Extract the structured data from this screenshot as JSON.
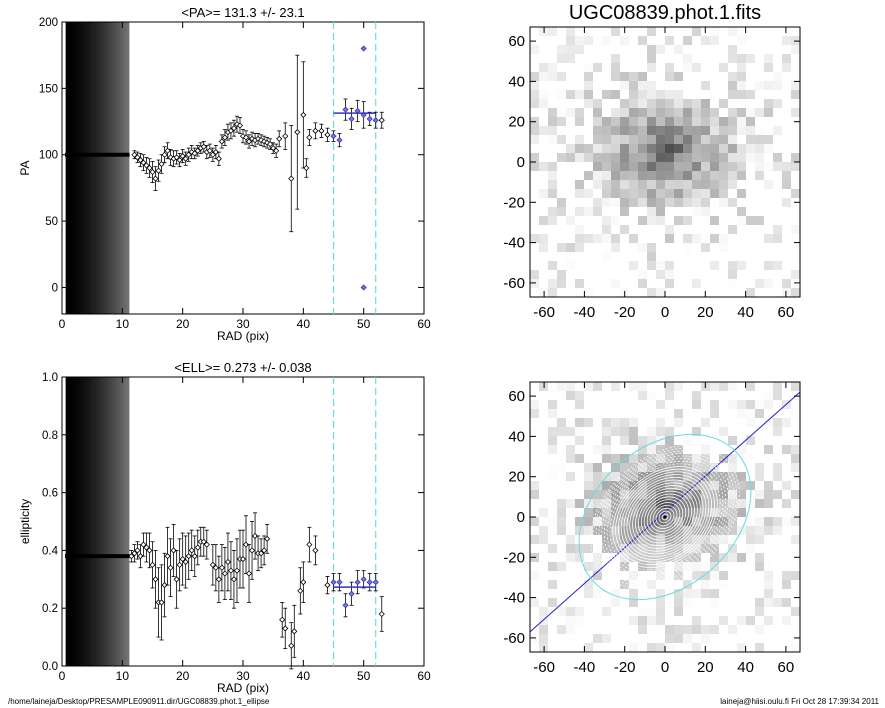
{
  "chart_data": [
    {
      "type": "scatter",
      "title": "<PA>= 131.3 +/-  23.1",
      "xlabel": "RAD (pix)",
      "ylabel": "PA",
      "xlim": [
        0,
        60
      ],
      "ylim": [
        -20,
        200
      ],
      "xticks": [
        0,
        10,
        20,
        30,
        40,
        50,
        60
      ],
      "yticks": [
        0,
        50,
        100,
        150,
        200
      ],
      "vlines": [
        45,
        52
      ],
      "mean_line": {
        "x": [
          45,
          52
        ],
        "y": 131.3
      },
      "points": [
        [
          12,
          100,
          3
        ],
        [
          12.5,
          98,
          4
        ],
        [
          13,
          96,
          5
        ],
        [
          13.5,
          94,
          6
        ],
        [
          14,
          92,
          6
        ],
        [
          14.5,
          90,
          7
        ],
        [
          15,
          87,
          8
        ],
        [
          15.5,
          82,
          9
        ],
        [
          16,
          88,
          8
        ],
        [
          16.5,
          93,
          7
        ],
        [
          17,
          100,
          6
        ],
        [
          17.5,
          103,
          6
        ],
        [
          18,
          98,
          6
        ],
        [
          18.5,
          97,
          6
        ],
        [
          19,
          98,
          5
        ],
        [
          19.5,
          96,
          5
        ],
        [
          20,
          99,
          5
        ],
        [
          20.5,
          97,
          5
        ],
        [
          21,
          100,
          5
        ],
        [
          21.5,
          102,
          5
        ],
        [
          22,
          101,
          4
        ],
        [
          22.5,
          103,
          4
        ],
        [
          23,
          105,
          4
        ],
        [
          23.5,
          106,
          4
        ],
        [
          24,
          102,
          5
        ],
        [
          24.5,
          103,
          5
        ],
        [
          25,
          100,
          5
        ],
        [
          25.5,
          102,
          5
        ],
        [
          26,
          97,
          5
        ],
        [
          26.5,
          110,
          5
        ],
        [
          27,
          113,
          6
        ],
        [
          27.5,
          117,
          6
        ],
        [
          28,
          118,
          6
        ],
        [
          28.5,
          120,
          6
        ],
        [
          29,
          123,
          6
        ],
        [
          29.5,
          122,
          6
        ],
        [
          30,
          114,
          5
        ],
        [
          30.5,
          113,
          5
        ],
        [
          31,
          110,
          5
        ],
        [
          31.5,
          112,
          5
        ],
        [
          32,
          111,
          5
        ],
        [
          32.5,
          112,
          4
        ],
        [
          33,
          111,
          4
        ],
        [
          33.5,
          110,
          4
        ],
        [
          34,
          109,
          4
        ],
        [
          34.5,
          108,
          4
        ],
        [
          35,
          105,
          4
        ],
        [
          35.5,
          103,
          5
        ],
        [
          36,
          112,
          6
        ],
        [
          37,
          114,
          10
        ],
        [
          38,
          82,
          40
        ],
        [
          39,
          117,
          58
        ],
        [
          40,
          130,
          40
        ],
        [
          40.5,
          90,
          7
        ],
        [
          41,
          113,
          6
        ],
        [
          42,
          118,
          6
        ],
        [
          43,
          118,
          5
        ],
        [
          44,
          115,
          5
        ],
        [
          45,
          114,
          4
        ],
        [
          46,
          111,
          5
        ],
        [
          47,
          134,
          8
        ],
        [
          48,
          127,
          8
        ],
        [
          49,
          133,
          8
        ],
        [
          50,
          130,
          10
        ],
        [
          51,
          127,
          5
        ],
        [
          52,
          126,
          6
        ],
        [
          53,
          126,
          6
        ],
        [
          50,
          180,
          0
        ],
        [
          50,
          0,
          0
        ]
      ]
    },
    {
      "type": "scatter",
      "title": "<ELL>= 0.273 +/-  0.038",
      "xlabel": "RAD (pix)",
      "ylabel": "ellipticity",
      "xlim": [
        0,
        60
      ],
      "ylim": [
        0,
        1
      ],
      "xticks": [
        0,
        10,
        20,
        30,
        40,
        50,
        60
      ],
      "yticks": [
        0,
        0.2,
        0.4,
        0.6,
        0.8,
        1
      ],
      "ytick_labels": [
        "0.0",
        "0.2",
        "0.4",
        "0.6",
        "0.8",
        "1.0"
      ],
      "vlines": [
        45,
        52
      ],
      "mean_line": {
        "x": [
          45,
          52
        ],
        "y": 0.273
      },
      "points": [
        [
          11.5,
          0.38,
          0.02
        ],
        [
          12,
          0.39,
          0.03
        ],
        [
          12.5,
          0.4,
          0.03
        ],
        [
          13,
          0.38,
          0.04
        ],
        [
          13.5,
          0.42,
          0.04
        ],
        [
          14,
          0.41,
          0.05
        ],
        [
          14.5,
          0.4,
          0.06
        ],
        [
          15,
          0.35,
          0.08
        ],
        [
          15.5,
          0.3,
          0.1
        ],
        [
          16,
          0.22,
          0.12
        ],
        [
          16.5,
          0.22,
          0.13
        ],
        [
          17,
          0.28,
          0.11
        ],
        [
          17.5,
          0.38,
          0.1
        ],
        [
          18,
          0.34,
          0.1
        ],
        [
          18.5,
          0.4,
          0.09
        ],
        [
          19,
          0.3,
          0.1
        ],
        [
          19.5,
          0.35,
          0.09
        ],
        [
          20,
          0.37,
          0.09
        ],
        [
          20.5,
          0.36,
          0.09
        ],
        [
          21,
          0.38,
          0.08
        ],
        [
          21.5,
          0.4,
          0.07
        ],
        [
          22,
          0.38,
          0.07
        ],
        [
          22.5,
          0.41,
          0.06
        ],
        [
          23,
          0.43,
          0.05
        ],
        [
          23.5,
          0.43,
          0.05
        ],
        [
          24,
          0.42,
          0.05
        ],
        [
          25,
          0.35,
          0.07
        ],
        [
          25.5,
          0.34,
          0.08
        ],
        [
          26,
          0.3,
          0.08
        ],
        [
          26.5,
          0.34,
          0.08
        ],
        [
          27,
          0.32,
          0.09
        ],
        [
          27.5,
          0.36,
          0.1
        ],
        [
          28,
          0.33,
          0.1
        ],
        [
          28.5,
          0.3,
          0.1
        ],
        [
          29,
          0.33,
          0.11
        ],
        [
          29.5,
          0.37,
          0.1
        ],
        [
          30,
          0.37,
          0.1
        ],
        [
          30.5,
          0.42,
          0.1
        ],
        [
          31,
          0.32,
          0.1
        ],
        [
          31.5,
          0.4,
          0.1
        ],
        [
          32,
          0.45,
          0.08
        ],
        [
          32.5,
          0.39,
          0.06
        ],
        [
          33,
          0.39,
          0.05
        ],
        [
          33.5,
          0.4,
          0.05
        ],
        [
          34,
          0.44,
          0.05
        ],
        [
          36.5,
          0.16,
          0.06
        ],
        [
          37,
          0.13,
          0.07
        ],
        [
          38,
          0.07,
          0.08
        ],
        [
          38.5,
          0.12,
          0.09
        ],
        [
          39.5,
          0.26,
          0.08
        ],
        [
          40,
          0.29,
          0.07
        ],
        [
          41,
          0.42,
          0.06
        ],
        [
          42,
          0.4,
          0.05
        ],
        [
          44,
          0.28,
          0.03
        ],
        [
          45,
          0.29,
          0.03
        ],
        [
          46,
          0.29,
          0.03
        ],
        [
          47,
          0.21,
          0.04
        ],
        [
          48,
          0.25,
          0.04
        ],
        [
          49,
          0.29,
          0.04
        ],
        [
          50,
          0.3,
          0.03
        ],
        [
          51,
          0.29,
          0.03
        ],
        [
          52,
          0.29,
          0.03
        ],
        [
          53,
          0.18,
          0.06
        ]
      ]
    },
    {
      "type": "heatmap",
      "title": "UGC08839.phot.1.fits",
      "xlim": [
        -67,
        67
      ],
      "ylim": [
        -67,
        67
      ],
      "ticks": [
        -60,
        -40,
        -20,
        0,
        20,
        40,
        60
      ]
    },
    {
      "type": "heatmap",
      "title": "",
      "xlim": [
        -67,
        67
      ],
      "ylim": [
        -67,
        67
      ],
      "ticks": [
        -60,
        -40,
        -20,
        0,
        20,
        40,
        60
      ],
      "ellipse_overlay": {
        "pa_deg": 131.3,
        "ellipticity": 0.273,
        "outer_radius": 52
      }
    }
  ],
  "footer": {
    "left": "/home/laineja/Desktop/PRESAMPLE090911.dir/UGC08839.phot.1_ellipse",
    "right": "laineja@hiisi.oulu.fi  Fri Oct 28 17:39:34 2011"
  },
  "colors": {
    "vline": "#66dddd",
    "mean": "#3333bb",
    "axis": "#000000",
    "ellipse": "#ffffff",
    "outer_ellipse": "#66dddd"
  }
}
